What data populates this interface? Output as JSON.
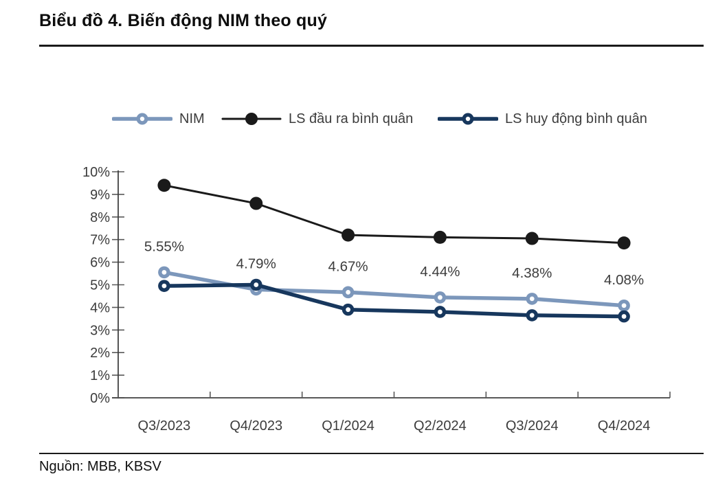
{
  "page": {
    "title": "Biểu đồ 4. Biến động NIM theo quý",
    "source": "Nguồn: MBB, KBSV"
  },
  "colors": {
    "nim": "#7c97bb",
    "ls_dau_ra": "#1a1a1a",
    "ls_huy_dong": "#17375d",
    "axis_line": "#404040",
    "tick_line": "#595959",
    "axis_text": "#3c3c3c",
    "data_label_text": "#3c3c3c",
    "marker_hole": "#ffffff"
  },
  "chart_data": {
    "type": "line",
    "title": "Biểu đồ 4. Biến động NIM theo quý",
    "categories": [
      "Q3/2023",
      "Q4/2023",
      "Q1/2024",
      "Q2/2024",
      "Q3/2024",
      "Q4/2024"
    ],
    "series": [
      {
        "name": "NIM",
        "color": "#7c97bb",
        "marker": "open-circle",
        "line_width": 5.5,
        "values": [
          5.55,
          4.79,
          4.67,
          4.44,
          4.38,
          4.08
        ],
        "data_labels": [
          "5.55%",
          "4.79%",
          "4.67%",
          "4.44%",
          "4.38%",
          "4.08%"
        ]
      },
      {
        "name": "LS đầu ra bình quân",
        "color": "#1a1a1a",
        "marker": "filled-circle",
        "line_width": 3,
        "values": [
          9.4,
          8.6,
          7.2,
          7.1,
          7.05,
          6.85
        ],
        "data_labels": null
      },
      {
        "name": "LS huy động bình quân",
        "color": "#17375d",
        "marker": "open-circle",
        "line_width": 5.5,
        "values": [
          4.95,
          5.0,
          3.9,
          3.8,
          3.65,
          3.6
        ],
        "data_labels": null
      }
    ],
    "xlabel": "",
    "ylabel": "",
    "ylim": [
      0,
      10
    ],
    "y_tick_step": 1,
    "y_tick_labels": [
      "0%",
      "1%",
      "2%",
      "3%",
      "4%",
      "5%",
      "6%",
      "7%",
      "8%",
      "9%",
      "10%"
    ],
    "grid": false,
    "legend_position": "top"
  }
}
